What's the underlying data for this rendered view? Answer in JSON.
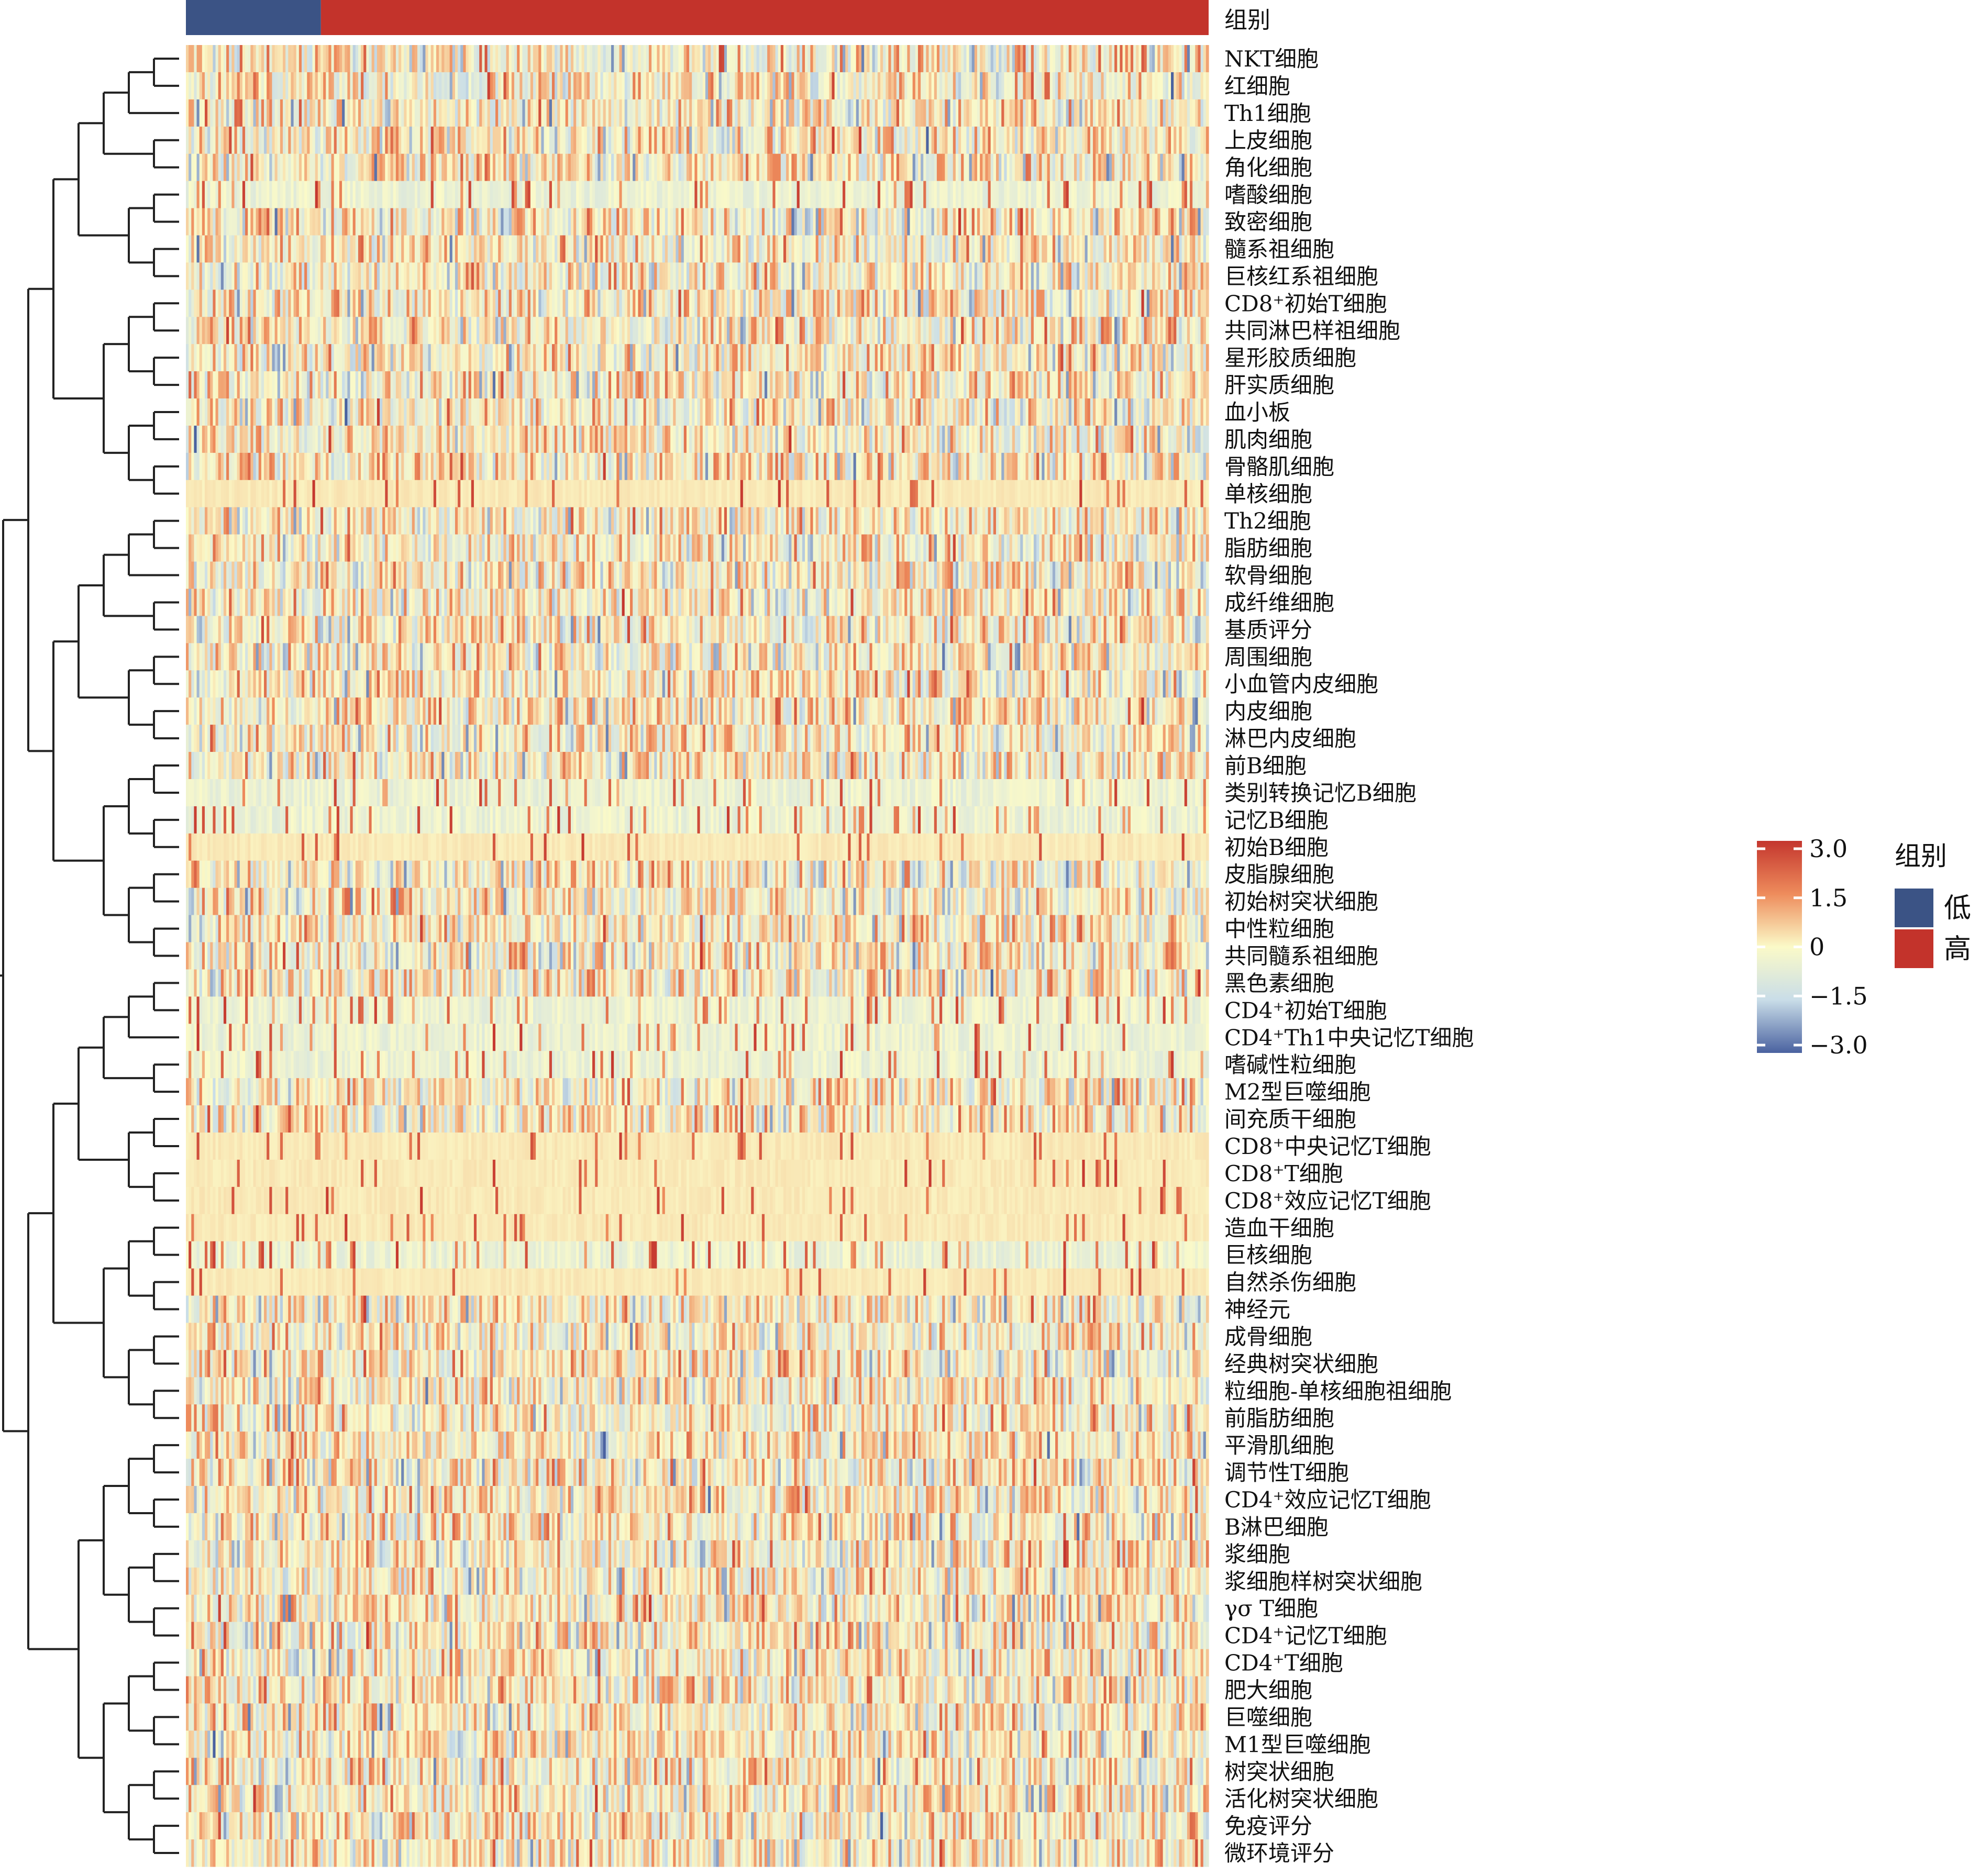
{
  "chart_data": {
    "type": "heatmap",
    "annotation_title": "组别",
    "annotation_groups": [
      {
        "label": "低",
        "color": "#3b5385"
      },
      {
        "label": "高",
        "color": "#c3332b"
      }
    ],
    "group_split_fraction": 0.132,
    "rows": [
      "NKT细胞",
      "红细胞",
      "Th1细胞",
      "上皮细胞",
      "角化细胞",
      "嗜酸细胞",
      "致密细胞",
      "髓系祖细胞",
      "巨核红系祖细胞",
      "CD8⁺初始T细胞",
      "共同淋巴样祖细胞",
      "星形胶质细胞",
      "肝实质细胞",
      "血小板",
      "肌肉细胞",
      "骨骼肌细胞",
      "单核细胞",
      "Th2细胞",
      "脂肪细胞",
      "软骨细胞",
      "成纤维细胞",
      "基质评分",
      "周围细胞",
      "小血管内皮细胞",
      "内皮细胞",
      "淋巴内皮细胞",
      "前B细胞",
      "类别转换记忆B细胞",
      "记忆B细胞",
      "初始B细胞",
      "皮脂腺细胞",
      "初始树突状细胞",
      "中性粒细胞",
      "共同髓系祖细胞",
      "黑色素细胞",
      "CD4⁺初始T细胞",
      "CD4⁺Th1中央记忆T细胞",
      "嗜碱性粒细胞",
      "M2型巨噬细胞",
      "间充质干细胞",
      "CD8⁺中央记忆T细胞",
      "CD8⁺T细胞",
      "CD8⁺效应记忆T细胞",
      "造血干细胞",
      "巨核细胞",
      "自然杀伤细胞",
      "神经元",
      "成骨细胞",
      "经典树突状细胞",
      "粒细胞-单核细胞祖细胞",
      "前脂肪细胞",
      "平滑肌细胞",
      "调节性T细胞",
      "CD4⁺效应记忆T细胞",
      "B淋巴细胞",
      "浆细胞",
      "浆细胞样树突状细胞",
      "γσ T细胞",
      "CD4⁺记忆T细胞",
      "CD4⁺T细胞",
      "肥大细胞",
      "巨噬细胞",
      "M1型巨噬细胞",
      "树突状细胞",
      "活化树突状细胞",
      "免疫评分",
      "微环境评分"
    ],
    "sparse_rows": [
      "单核细胞",
      "初始B细胞",
      "CD8⁺中央记忆T细胞",
      "CD8⁺T细胞",
      "CD8⁺效应记忆T细胞",
      "造血干细胞",
      "自然杀伤细胞"
    ],
    "semi_sparse_rows": [
      "嗜酸细胞",
      "类别转换记忆B细胞",
      "记忆B细胞",
      "CD4⁺初始T细胞",
      "CD4⁺Th1中央记忆T细胞",
      "嗜碱性粒细胞",
      "巨核细胞"
    ],
    "color_scale": {
      "min": -3.0,
      "max": 3.0,
      "colors": [
        "#4a62a0",
        "#c9dde8",
        "#fbfac8",
        "#ee8c5c",
        "#c4362e"
      ],
      "ticks": [
        "3.0",
        "1.5",
        "0",
        "−1.5",
        "−3.0"
      ]
    }
  }
}
